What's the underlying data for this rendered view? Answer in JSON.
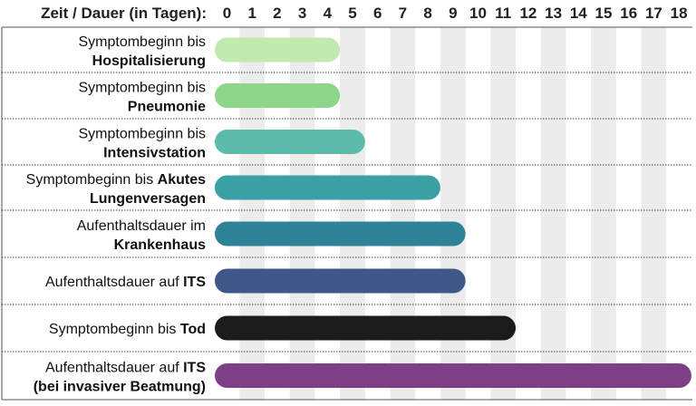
{
  "chart_data": {
    "type": "bar",
    "orientation": "horizontal",
    "xlabel": "Zeit / Dauer (in Tagen):",
    "x_ticks": [
      0,
      1,
      2,
      3,
      4,
      5,
      6,
      7,
      8,
      9,
      10,
      11,
      12,
      13,
      14,
      15,
      16,
      17,
      18
    ],
    "xlim": [
      0,
      18
    ],
    "grid": "alternating-column-shading",
    "categories": [
      {
        "line1": "Symptombeginn bis",
        "line1_bold": "",
        "line2": "Hospitalisierung"
      },
      {
        "line1": "Symptombeginn bis",
        "line1_bold": "",
        "line2": "Pneumonie"
      },
      {
        "line1": "Symptombeginn bis",
        "line1_bold": "",
        "line2": "Intensivstation"
      },
      {
        "line1": "Symptombeginn bis ",
        "line1_bold": "Akutes",
        "line2": "Lungenversagen"
      },
      {
        "line1": "Aufenthaltsdauer im",
        "line1_bold": "",
        "line2": "Krankenhaus"
      },
      {
        "line1": "Aufenthaltsdauer auf ",
        "line1_bold": "ITS",
        "line2": ""
      },
      {
        "line1": "Symptombeginn bis ",
        "line1_bold": "Tod",
        "line2": ""
      },
      {
        "line1": "Aufenthaltsdauer auf ",
        "line1_bold": "ITS",
        "line2": "(bei invasiver Beatmung)"
      }
    ],
    "values": [
      4.5,
      4.5,
      5.5,
      8.5,
      9.5,
      9.5,
      11.5,
      18.5
    ],
    "colors": [
      "#c2eab0",
      "#8dd68a",
      "#5cbbaa",
      "#3aa0a4",
      "#2e8399",
      "#3f5789",
      "#1b1b1b",
      "#7f3f86"
    ]
  }
}
